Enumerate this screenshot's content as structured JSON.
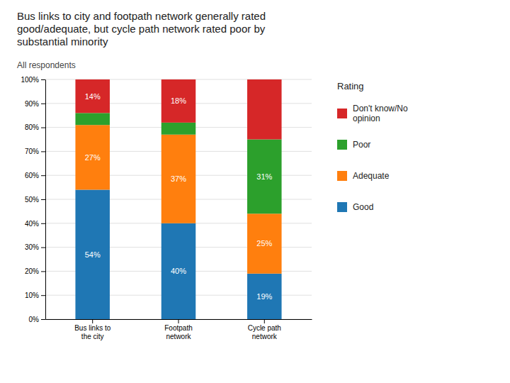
{
  "chart_data": {
    "type": "bar",
    "stacked": true,
    "title": "Bus links to city and footpath network generally rated\ngood/adequate, but cycle path network rated poor  by\nsubstantial minority",
    "subtitle": "All respondents",
    "legend_title": "Rating",
    "categories": [
      "Bus links to\nthe city",
      "Footpath\nnetwork",
      "Cycle path\nnetwork"
    ],
    "series": [
      {
        "name": "Good",
        "values": [
          54,
          40,
          19
        ],
        "value_labels": [
          "54%",
          "40%",
          "19%"
        ]
      },
      {
        "name": "Adequate",
        "values": [
          27,
          37,
          25
        ],
        "value_labels": [
          "27%",
          "37%",
          "25%"
        ]
      },
      {
        "name": "Poor",
        "values": [
          5,
          5,
          31
        ],
        "value_labels": [
          null,
          null,
          "31%"
        ]
      },
      {
        "name": "Don't know/No\nopinion",
        "values": [
          14,
          18,
          25
        ],
        "value_labels": [
          "14%",
          "18%",
          null
        ]
      }
    ],
    "ylim": [
      0,
      100
    ],
    "yticks": [
      {
        "value": 0,
        "label": "0%"
      },
      {
        "value": 10,
        "label": "10%"
      },
      {
        "value": 20,
        "label": "20%"
      },
      {
        "value": 30,
        "label": "30%"
      },
      {
        "value": 40,
        "label": "40%"
      },
      {
        "value": 50,
        "label": "50%"
      },
      {
        "value": 60,
        "label": "60%"
      },
      {
        "value": 70,
        "label": "70%"
      },
      {
        "value": 80,
        "label": "80%"
      },
      {
        "value": 90,
        "label": "90%"
      },
      {
        "value": 100,
        "label": "100%"
      }
    ],
    "grid": true,
    "data_labels": true,
    "legend": "right"
  }
}
